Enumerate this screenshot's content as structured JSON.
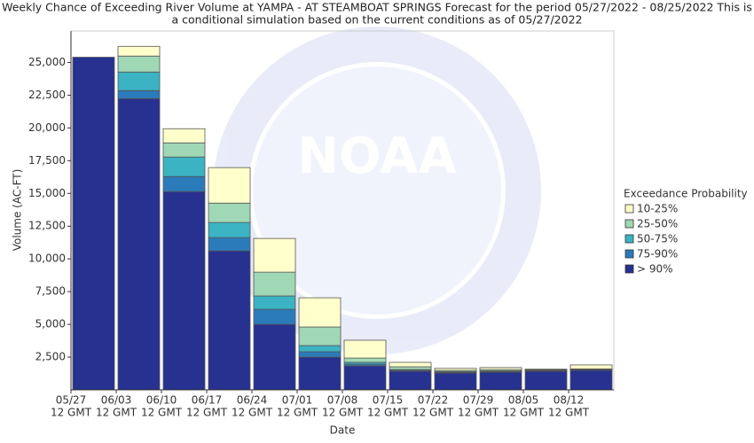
{
  "chart_data": {
    "type": "stacked_bar",
    "title_lines": [
      "Weekly Chance of Exceeding River Volume at YAMPA - AT STEAMBOAT SPRINGS Forecast for the period 05/27/2022 - 08/25/2022 This is",
      "a conditional simulation based on the current conditions as of 05/27/2022"
    ],
    "watermark": "NOAA",
    "y_label": "Volume (AC-FT)",
    "x_label": "Date",
    "legend_title": "Exceedance Probability",
    "categories": [
      {
        "date": "05/27",
        "time": "12 GMT"
      },
      {
        "date": "06/03",
        "time": "12 GMT"
      },
      {
        "date": "06/10",
        "time": "12 GMT"
      },
      {
        "date": "06/17",
        "time": "12 GMT"
      },
      {
        "date": "06/24",
        "time": "12 GMT"
      },
      {
        "date": "07/01",
        "time": "12 GMT"
      },
      {
        "date": "07/08",
        "time": "12 GMT"
      },
      {
        "date": "07/15",
        "time": "12 GMT"
      },
      {
        "date": "07/22",
        "time": "12 GMT"
      },
      {
        "date": "07/29",
        "time": "12 GMT"
      },
      {
        "date": "08/05",
        "time": "12 GMT"
      },
      {
        "date": "08/12",
        "time": "12 GMT"
      }
    ],
    "series": [
      {
        "name": "> 90%",
        "color": "#27318f",
        "values": [
          25400,
          22240,
          15140,
          10610,
          5000,
          2500,
          1830,
          1420,
          1280,
          1350,
          1420,
          1490
        ]
      },
      {
        "name": "75-90%",
        "color": "#2b7bba",
        "values": [
          0,
          610,
          1150,
          1020,
          1150,
          410,
          130,
          70,
          60,
          50,
          30,
          30
        ]
      },
      {
        "name": "50-75%",
        "color": "#3bb3c3",
        "values": [
          0,
          1420,
          1490,
          1150,
          1020,
          470,
          140,
          60,
          50,
          50,
          30,
          30
        ]
      },
      {
        "name": "25-50%",
        "color": "#a0d7b5",
        "values": [
          0,
          1220,
          1080,
          1480,
          1820,
          1420,
          330,
          210,
          100,
          100,
          50,
          50
        ]
      },
      {
        "name": "10-25%",
        "color": "#ffffcc",
        "values": [
          0,
          740,
          1080,
          2710,
          2570,
          2230,
          1360,
          340,
          150,
          150,
          50,
          300
        ]
      }
    ],
    "ylim": [
      0,
      27400
    ],
    "yticks": [
      {
        "value": 2500,
        "label": "2,500"
      },
      {
        "value": 5000,
        "label": "5,000"
      },
      {
        "value": 7500,
        "label": "7,500"
      },
      {
        "value": 10000,
        "label": "10,000"
      },
      {
        "value": 12500,
        "label": "12,500"
      },
      {
        "value": 15000,
        "label": "15,000"
      },
      {
        "value": 17500,
        "label": "17,500"
      },
      {
        "value": 20000,
        "label": "20,000"
      },
      {
        "value": 22500,
        "label": "22,500"
      },
      {
        "value": 25000,
        "label": "25,000"
      }
    ]
  }
}
